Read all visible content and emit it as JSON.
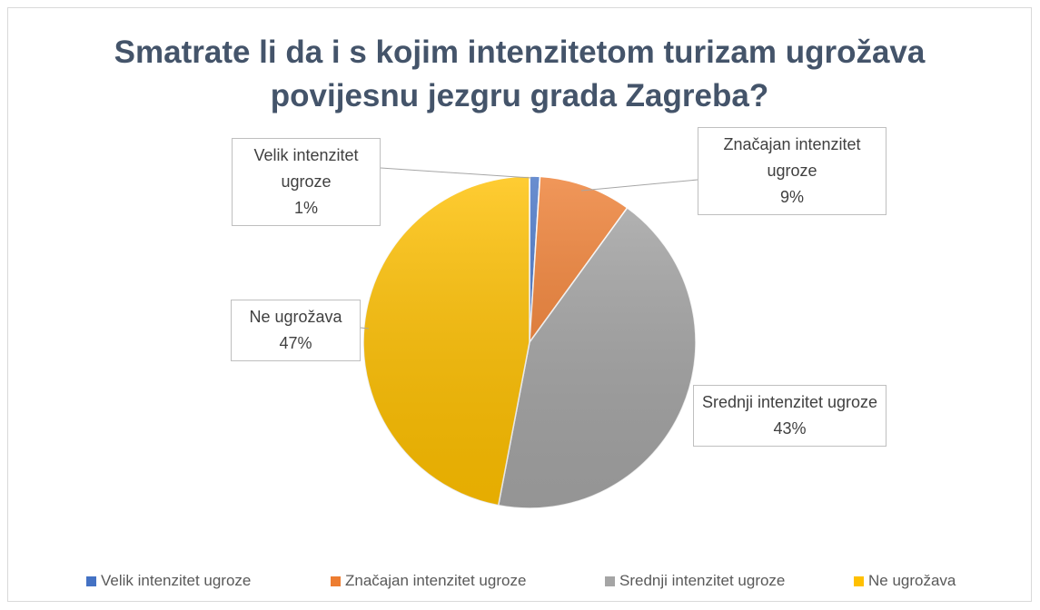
{
  "chart_data": {
    "type": "pie",
    "title": "Smatrate li da i s kojim intenzitetom turizam ugrožava povijesnu jezgru grada Zagreba?",
    "categories": [
      "Velik intenzitet ugroze",
      "Značajan intenzitet ugroze",
      "Srednji intenzitet ugroze",
      "Ne ugrožava"
    ],
    "values": [
      1,
      9,
      43,
      47
    ],
    "value_labels": [
      "1%",
      "9%",
      "43%",
      "47%"
    ],
    "colors": [
      "#4472c4",
      "#ed7d31",
      "#a5a5a5",
      "#ffc000"
    ],
    "legend": "bottom"
  }
}
